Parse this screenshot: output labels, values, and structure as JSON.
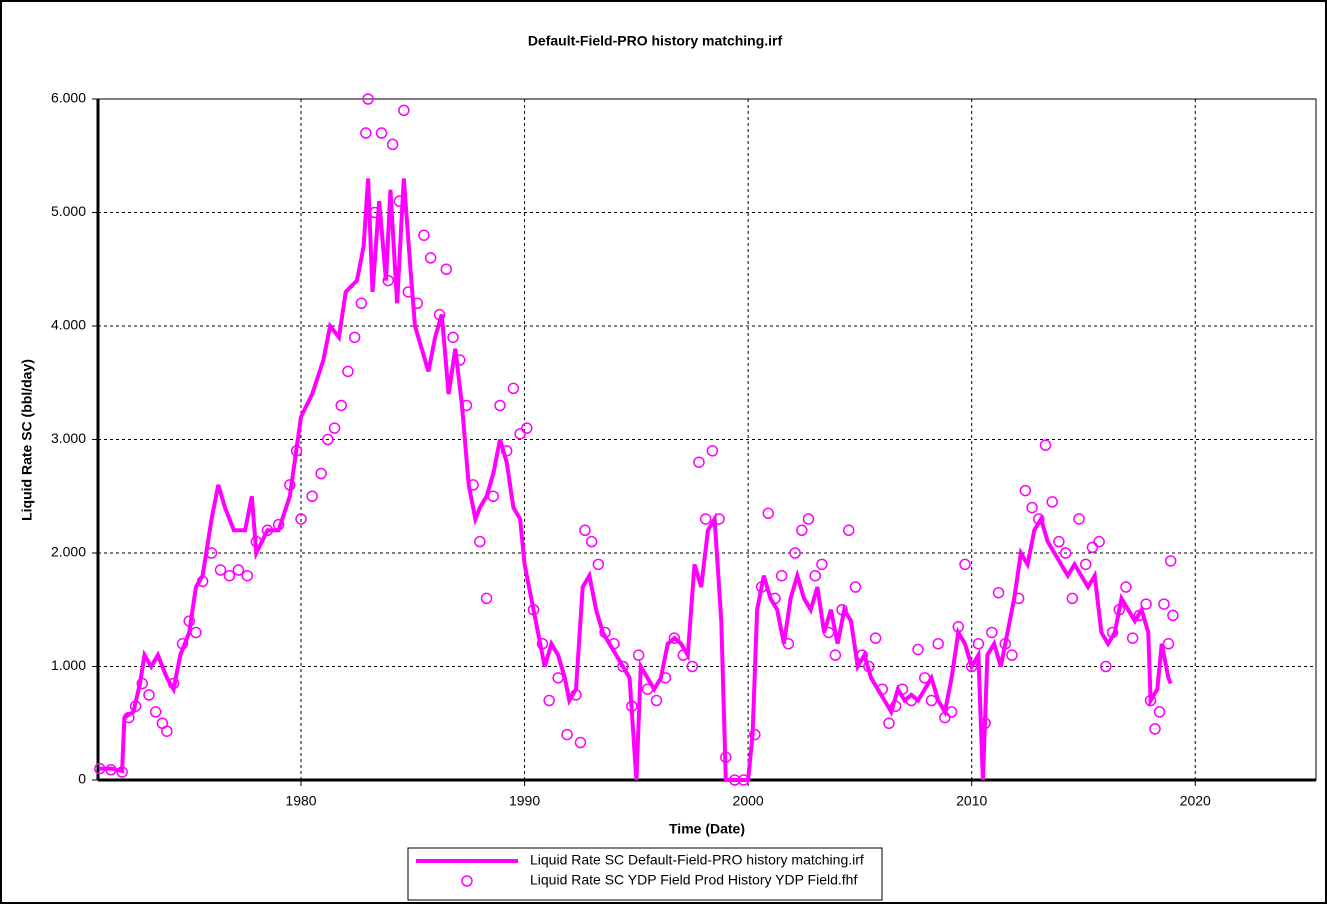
{
  "chart_data": {
    "type": "line",
    "title": "Default-Field-PRO history matching.irf",
    "x_label": "Time (Date)",
    "y_label": "Liquid Rate SC (bbl/day)",
    "xlim": [
      1970.92,
      2025.4
    ],
    "ylim": [
      0,
      6000
    ],
    "xticks": [
      1980,
      1990,
      2000,
      2010,
      2020
    ],
    "yticks": [
      0,
      {
        "value": 1000,
        "label": "1.000"
      },
      {
        "value": 2000,
        "label": "2.000"
      },
      {
        "value": 3000,
        "label": "3.000"
      },
      {
        "value": 4000,
        "label": "4.000"
      },
      {
        "value": 5000,
        "label": "5.000"
      },
      {
        "value": 6000,
        "label": "6.000"
      }
    ],
    "grid": true,
    "legend": "bottom",
    "series": [
      {
        "name": "Liquid Rate SC Default-Field-PRO history matching.irf",
        "color": "#ff00ff",
        "style": "line",
        "x": [
          1971.0,
          1971.5,
          1972.0,
          1972.1,
          1972.5,
          1972.8,
          1973.0,
          1973.3,
          1973.6,
          1974.0,
          1974.3,
          1974.6,
          1975.0,
          1975.3,
          1975.6,
          1976.0,
          1976.3,
          1976.6,
          1977.0,
          1977.5,
          1977.8,
          1978.0,
          1978.5,
          1979.0,
          1979.5,
          1980.0,
          1980.5,
          1981.0,
          1981.3,
          1981.7,
          1982.0,
          1982.5,
          1982.8,
          1983.0,
          1983.2,
          1983.5,
          1983.8,
          1984.0,
          1984.3,
          1984.6,
          1984.9,
          1985.1,
          1985.4,
          1985.7,
          1986.0,
          1986.3,
          1986.6,
          1986.9,
          1987.2,
          1987.5,
          1987.8,
          1988.0,
          1988.3,
          1988.6,
          1988.9,
          1989.2,
          1989.5,
          1989.8,
          1990.0,
          1990.3,
          1990.6,
          1990.9,
          1991.2,
          1991.5,
          1991.8,
          1992.0,
          1992.3,
          1992.6,
          1992.9,
          1993.2,
          1993.5,
          1993.8,
          1994.1,
          1994.4,
          1994.7,
          1995.0,
          1995.2,
          1995.5,
          1995.8,
          1996.1,
          1996.4,
          1996.7,
          1997.0,
          1997.3,
          1997.6,
          1997.9,
          1998.2,
          1998.5,
          1998.8,
          1999.0,
          1999.5,
          2000.0,
          2000.2,
          2000.4,
          2000.7,
          2001.0,
          2001.3,
          2001.6,
          2001.9,
          2002.2,
          2002.5,
          2002.8,
          2003.1,
          2003.4,
          2003.7,
          2004.0,
          2004.3,
          2004.6,
          2004.9,
          2005.2,
          2005.5,
          2005.8,
          2006.1,
          2006.4,
          2006.7,
          2007.0,
          2007.3,
          2007.6,
          2007.9,
          2008.2,
          2008.5,
          2008.8,
          2009.1,
          2009.4,
          2009.7,
          2010.0,
          2010.3,
          2010.5,
          2010.7,
          2011.0,
          2011.3,
          2011.6,
          2011.9,
          2012.2,
          2012.5,
          2012.8,
          2013.1,
          2013.4,
          2013.7,
          2014.0,
          2014.3,
          2014.6,
          2014.9,
          2015.2,
          2015.5,
          2015.8,
          2016.1,
          2016.4,
          2016.7,
          2017.0,
          2017.3,
          2017.6,
          2017.9,
          2018.0,
          2018.3,
          2018.5,
          2018.8,
          2018.9
        ],
        "values": [
          100,
          100,
          80,
          550,
          600,
          850,
          1100,
          1000,
          1100,
          900,
          800,
          1100,
          1300,
          1700,
          1800,
          2300,
          2600,
          2400,
          2200,
          2200,
          2500,
          2000,
          2200,
          2200,
          2500,
          3200,
          3400,
          3700,
          4000,
          3900,
          4300,
          4400,
          4700,
          5300,
          4300,
          5100,
          4400,
          5200,
          4200,
          5300,
          4500,
          4000,
          3800,
          3600,
          3900,
          4100,
          3400,
          3800,
          3300,
          2600,
          2300,
          2400,
          2500,
          2700,
          3000,
          2800,
          2400,
          2300,
          1900,
          1600,
          1300,
          1000,
          1200,
          1100,
          900,
          700,
          800,
          1700,
          1800,
          1500,
          1300,
          1200,
          1100,
          1000,
          900,
          0,
          1000,
          900,
          800,
          900,
          1200,
          1250,
          1200,
          1100,
          1900,
          1700,
          2200,
          2300,
          1400,
          0,
          0,
          0,
          400,
          1500,
          1800,
          1600,
          1500,
          1200,
          1600,
          1800,
          1600,
          1500,
          1700,
          1300,
          1500,
          1200,
          1500,
          1400,
          1000,
          1100,
          900,
          800,
          700,
          600,
          800,
          700,
          750,
          700,
          800,
          900,
          700,
          600,
          900,
          1300,
          1200,
          1000,
          1100,
          0,
          1100,
          1200,
          1000,
          1300,
          1600,
          2000,
          1900,
          2200,
          2300,
          2100,
          2000,
          1900,
          1800,
          1900,
          1800,
          1700,
          1800,
          1300,
          1200,
          1300,
          1600,
          1500,
          1400,
          1500,
          1300,
          700,
          800,
          1200,
          900,
          850
        ]
      },
      {
        "name": "Liquid Rate SC YDP Field Prod History YDP Field.fhf",
        "color": "#ff00ff",
        "style": "markers",
        "x": [
          1971.0,
          1971.5,
          1972.0,
          1972.3,
          1972.6,
          1972.9,
          1973.2,
          1973.5,
          1973.8,
          1974.0,
          1974.3,
          1974.7,
          1975.0,
          1975.3,
          1975.6,
          1976.0,
          1976.4,
          1976.8,
          1977.2,
          1977.6,
          1978.0,
          1978.5,
          1979.0,
          1979.5,
          1979.8,
          1980.0,
          1980.5,
          1980.9,
          1981.2,
          1981.5,
          1981.8,
          1982.1,
          1982.4,
          1982.7,
          1982.9,
          1983.0,
          1983.3,
          1983.6,
          1983.9,
          1984.1,
          1984.4,
          1984.6,
          1984.8,
          1985.2,
          1985.5,
          1985.8,
          1986.2,
          1986.5,
          1986.8,
          1987.1,
          1987.4,
          1987.7,
          1988.0,
          1988.3,
          1988.6,
          1988.9,
          1989.2,
          1989.5,
          1989.8,
          1990.1,
          1990.4,
          1990.8,
          1991.1,
          1991.5,
          1991.9,
          1992.3,
          1992.5,
          1992.7,
          1993.0,
          1993.3,
          1993.6,
          1994.0,
          1994.4,
          1994.8,
          1995.1,
          1995.5,
          1995.9,
          1996.3,
          1996.7,
          1997.1,
          1997.5,
          1997.8,
          1998.1,
          1998.4,
          1998.7,
          1999.0,
          1999.4,
          1999.8,
          2000.3,
          2000.6,
          2000.9,
          2001.2,
          2001.5,
          2001.8,
          2002.1,
          2002.4,
          2002.7,
          2003.0,
          2003.3,
          2003.6,
          2003.9,
          2004.2,
          2004.5,
          2004.8,
          2005.1,
          2005.4,
          2005.7,
          2006.0,
          2006.3,
          2006.6,
          2006.9,
          2007.3,
          2007.6,
          2007.9,
          2008.2,
          2008.5,
          2008.8,
          2009.1,
          2009.4,
          2009.7,
          2010.0,
          2010.3,
          2010.6,
          2010.9,
          2011.2,
          2011.5,
          2011.8,
          2012.1,
          2012.4,
          2012.7,
          2013.0,
          2013.3,
          2013.6,
          2013.9,
          2014.2,
          2014.5,
          2014.8,
          2015.1,
          2015.4,
          2015.7,
          2016.0,
          2016.3,
          2016.6,
          2016.9,
          2017.2,
          2017.5,
          2017.8,
          2018.0,
          2018.2,
          2018.4,
          2018.6,
          2018.8,
          2018.9,
          2019.0
        ],
        "values": [
          100,
          90,
          70,
          550,
          650,
          850,
          750,
          600,
          500,
          430,
          850,
          1200,
          1400,
          1300,
          1750,
          2000,
          1850,
          1800,
          1850,
          1800,
          2100,
          2200,
          2250,
          2600,
          2900,
          2300,
          2500,
          2700,
          3000,
          3100,
          3300,
          3600,
          3900,
          4200,
          5700,
          6000,
          5000,
          5700,
          4400,
          5600,
          5100,
          5900,
          4300,
          4200,
          4800,
          4600,
          4100,
          4500,
          3900,
          3700,
          3300,
          2600,
          2100,
          1600,
          2500,
          3300,
          2900,
          3450,
          3050,
          3100,
          1500,
          1200,
          700,
          900,
          400,
          750,
          330,
          2200,
          2100,
          1900,
          1300,
          1200,
          1000,
          650,
          1100,
          800,
          700,
          900,
          1250,
          1100,
          1000,
          2800,
          2300,
          2900,
          2300,
          200,
          0,
          0,
          400,
          1700,
          2350,
          1600,
          1800,
          1200,
          2000,
          2200,
          2300,
          1800,
          1900,
          1300,
          1100,
          1500,
          2200,
          1700,
          1100,
          1000,
          1250,
          800,
          500,
          650,
          800,
          700,
          1150,
          900,
          700,
          1200,
          550,
          600,
          1350,
          1900,
          1000,
          1200,
          500,
          1300,
          1650,
          1200,
          1100,
          1600,
          2550,
          2400,
          2300,
          2950,
          2450,
          2100,
          2000,
          1600,
          2300,
          1900,
          2050,
          2100,
          1000,
          1300,
          1500,
          1700,
          1250,
          1450,
          1550,
          700,
          450,
          600,
          1550,
          1200,
          1930,
          1450
        ]
      }
    ]
  }
}
